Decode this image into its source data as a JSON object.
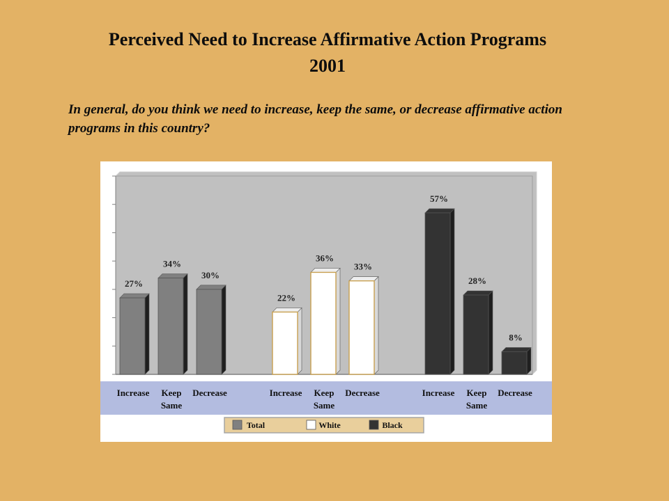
{
  "title_line1": "Perceived Need to Increase Affirmative Action Programs",
  "title_line2": "2001",
  "question": "In general, do you think we need to increase, keep the same, or decrease affirmative action programs in this country?",
  "colors": {
    "background": "#E3B265",
    "plot_area": "#C0C0C0",
    "category_band": "#B3BCE0",
    "Total": "#808080",
    "White": "#FFFFFF",
    "Black": "#333333"
  },
  "chart_data": {
    "type": "bar",
    "title": "Perceived Need to Increase Affirmative Action Programs 2001",
    "xlabel": "",
    "ylabel": "",
    "ylim": [
      0,
      70
    ],
    "grid": false,
    "legend_position": "bottom",
    "categories": [
      "Increase",
      "Keep Same",
      "Decrease"
    ],
    "series": [
      {
        "name": "Total",
        "values": [
          27,
          34,
          30
        ],
        "labels": [
          "27%",
          "34%",
          "30%"
        ]
      },
      {
        "name": "White",
        "values": [
          22,
          36,
          33
        ],
        "labels": [
          "22%",
          "36%",
          "33%"
        ]
      },
      {
        "name": "Black",
        "values": [
          57,
          28,
          8
        ],
        "labels": [
          "57%",
          "28%",
          "8%"
        ]
      }
    ]
  }
}
